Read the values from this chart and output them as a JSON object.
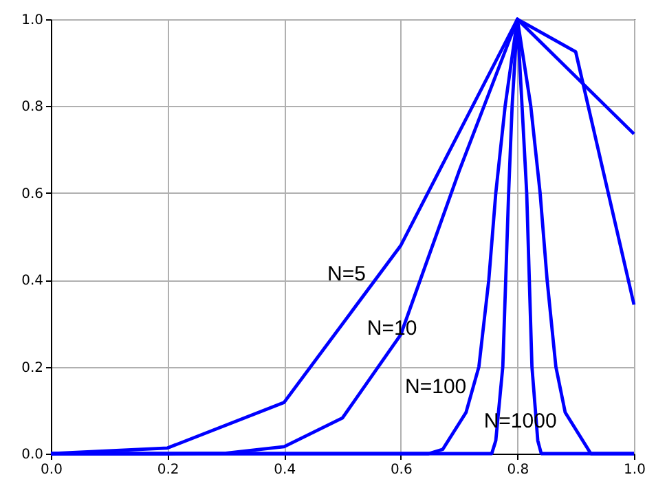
{
  "chart_data": {
    "type": "line",
    "series": [
      {
        "name": "N=5",
        "color": "#0000ff",
        "x": [
          0,
          0.2,
          0.4,
          0.6,
          0.8,
          1.0
        ],
        "values": [
          0,
          0.013,
          0.118,
          0.479,
          1.0,
          0.736
        ]
      },
      {
        "name": "N=10",
        "color": "#0000ff",
        "x": [
          0,
          0.1,
          0.2,
          0.3,
          0.4,
          0.5,
          0.6,
          0.7,
          0.8,
          0.9,
          1.0
        ],
        "values": [
          0,
          0,
          0,
          0.001,
          0.016,
          0.082,
          0.274,
          0.65,
          1.0,
          0.925,
          0.343
        ]
      },
      {
        "name": "N=100",
        "color": "#0000ff",
        "x": [
          0,
          0.6,
          0.648,
          0.672,
          0.712,
          0.734,
          0.751,
          0.763,
          0.779,
          0.8,
          0.823,
          0.839,
          0.851,
          0.866,
          0.882,
          0.926,
          1.0
        ],
        "values": [
          0,
          0,
          0,
          0.01,
          0.095,
          0.2,
          0.4,
          0.6,
          0.8,
          1.0,
          0.8,
          0.6,
          0.4,
          0.2,
          0.095,
          0,
          0
        ]
      },
      {
        "name": "N=1000",
        "color": "#0000ff",
        "x": [
          0,
          0.7,
          0.756,
          0.763,
          0.775,
          0.785,
          0.791,
          0.8,
          0.808,
          0.816,
          0.825,
          0.835,
          0.841,
          0.9,
          1.0
        ],
        "values": [
          0,
          0,
          0,
          0.03,
          0.2,
          0.6,
          0.8,
          1.0,
          0.8,
          0.6,
          0.2,
          0.03,
          0,
          0,
          0
        ]
      }
    ],
    "xlim": [
      0,
      1.0
    ],
    "ylim": [
      0,
      1.0
    ],
    "xticks": [
      {
        "value": 0,
        "label": "0.0"
      },
      {
        "value": 0.2,
        "label": "0.2"
      },
      {
        "value": 0.4,
        "label": "0.4"
      },
      {
        "value": 0.6,
        "label": "0.6"
      },
      {
        "value": 0.8,
        "label": "0.8"
      },
      {
        "value": 1.0,
        "label": "1.0"
      }
    ],
    "yticks": [
      {
        "value": 0,
        "label": "0.0"
      },
      {
        "value": 0.2,
        "label": "0.2"
      },
      {
        "value": 0.4,
        "label": "0.4"
      },
      {
        "value": 0.6,
        "label": "0.6"
      },
      {
        "value": 0.8,
        "label": "0.8"
      },
      {
        "value": 1.0,
        "label": "1.0"
      }
    ],
    "grid": true,
    "marker": "none",
    "line_style": "solid"
  }
}
